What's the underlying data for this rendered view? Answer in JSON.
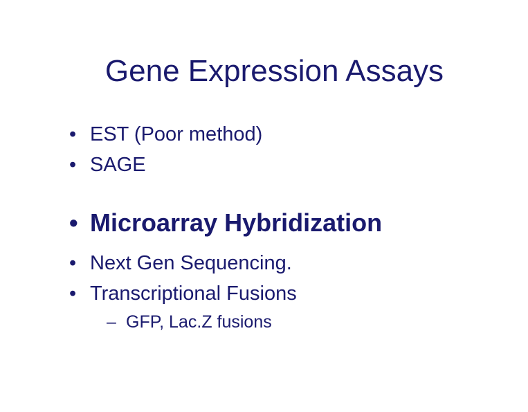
{
  "slide": {
    "title": "Gene Expression Assays",
    "title_color": "#1a1a6e",
    "title_fontsize": 44,
    "background_color": "#ffffff",
    "bullets": [
      {
        "text": "EST  (Poor method)",
        "level": 1,
        "emphasis": false
      },
      {
        "text": "SAGE",
        "level": 1,
        "emphasis": false
      },
      {
        "text": "Microarray Hybridization",
        "level": 1,
        "emphasis": true
      },
      {
        "text": "Next Gen Sequencing.",
        "level": 1,
        "emphasis": false
      },
      {
        "text": "Transcriptional Fusions",
        "level": 1,
        "emphasis": false
      },
      {
        "text": "GFP, Lac.Z fusions",
        "level": 2,
        "emphasis": false
      }
    ],
    "text_color": "#1a1a6e",
    "body_fontsize": 29,
    "emphasis_fontsize": 36,
    "sub_fontsize": 25
  }
}
